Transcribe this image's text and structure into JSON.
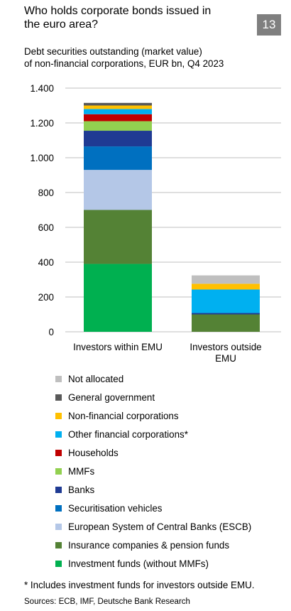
{
  "header": {
    "title_line1": "Who holds corporate bonds issued in",
    "title_line2": "the euro area?",
    "badge": "13"
  },
  "subtitle_line1": "Debt securities outstanding (market value)",
  "subtitle_line2": "of non-financial corporations, EUR bn, Q4 2023",
  "chart_data": {
    "type": "bar",
    "stacked": true,
    "categories": [
      "Investors within EMU",
      "Investors outside EMU"
    ],
    "category_lines": [
      [
        "Investors within EMU"
      ],
      [
        "Investors outside",
        "EMU"
      ]
    ],
    "ylim": [
      0,
      1400
    ],
    "yticks": [
      0,
      200,
      400,
      600,
      800,
      1000,
      1200,
      1400
    ],
    "ytick_labels": [
      "0",
      "200",
      "400",
      "600",
      "800",
      "1.000",
      "1.200",
      "1.400"
    ],
    "grid": true,
    "legend_position": "bottom",
    "series": [
      {
        "name": "Investment funds (without MMFs)",
        "color": "#00b050",
        "values": [
          390,
          0
        ]
      },
      {
        "name": "Insurance companies & pension funds",
        "color": "#548235",
        "values": [
          310,
          100
        ]
      },
      {
        "name": "European System of Central Banks (ESCB)",
        "color": "#b4c7e7",
        "values": [
          230,
          0
        ]
      },
      {
        "name": "Securitisation vehicles",
        "color": "#0070c0",
        "values": [
          135,
          0
        ]
      },
      {
        "name": "Banks",
        "color": "#1f3a93",
        "values": [
          90,
          8
        ]
      },
      {
        "name": "MMFs",
        "color": "#92d050",
        "values": [
          55,
          0
        ]
      },
      {
        "name": "Households",
        "color": "#c00000",
        "values": [
          40,
          0
        ]
      },
      {
        "name": "Other financial corporations*",
        "color": "#00b0f0",
        "values": [
          30,
          135
        ]
      },
      {
        "name": "Non-financial corporations",
        "color": "#ffc000",
        "values": [
          20,
          33
        ]
      },
      {
        "name": "General government",
        "color": "#595959",
        "values": [
          15,
          0
        ]
      },
      {
        "name": "Not allocated",
        "color": "#bfbfbf",
        "values": [
          0,
          48
        ]
      }
    ]
  },
  "footnote": "* Includes investment funds for investors outside EMU.",
  "sources": "Sources: ECB, IMF, Deutsche Bank Research"
}
